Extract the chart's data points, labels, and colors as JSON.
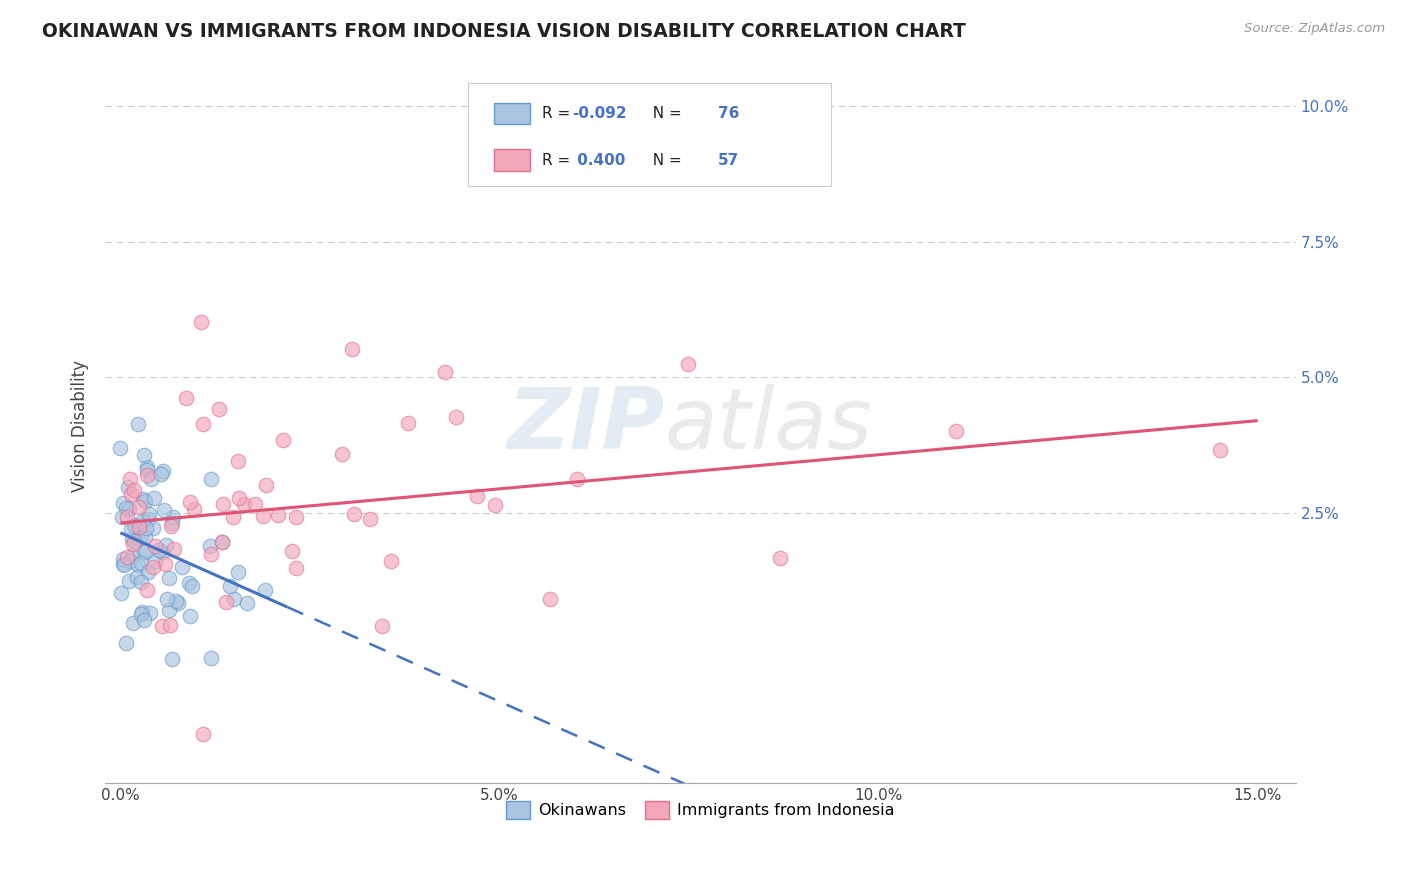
{
  "title": "OKINAWAN VS IMMIGRANTS FROM INDONESIA VISION DISABILITY CORRELATION CHART",
  "source": "Source: ZipAtlas.com",
  "ylabel": "Vision Disability",
  "xlim": [
    -0.002,
    0.155
  ],
  "ylim": [
    -0.025,
    0.107
  ],
  "xticks": [
    0.0,
    0.05,
    0.1,
    0.15
  ],
  "xtick_labels": [
    "0.0%",
    "5.0%",
    "10.0%",
    "15.0%"
  ],
  "yticks": [
    0.025,
    0.05,
    0.075,
    0.1
  ],
  "ytick_labels": [
    "2.5%",
    "5.0%",
    "7.5%",
    "10.0%"
  ],
  "okinawan_color": "#a8c4e0",
  "indonesia_color": "#f4a7b9",
  "okinawan_edge": "#6699cc",
  "indonesia_edge": "#e07090",
  "trend_blue": "#4472c4",
  "trend_pink": "#e05575",
  "R_okinawan": -0.092,
  "N_okinawan": 76,
  "R_indonesia": 0.4,
  "N_indonesia": 57,
  "watermark_zip": "ZIP",
  "watermark_atlas": "atlas",
  "legend_label_1": "Okinawans",
  "legend_label_2": "Immigrants from Indonesia"
}
